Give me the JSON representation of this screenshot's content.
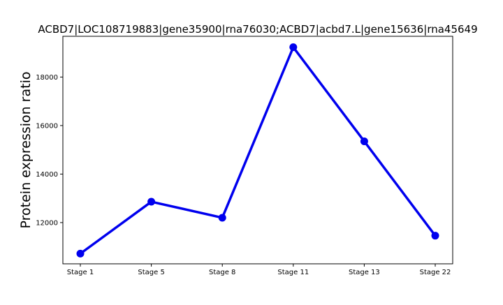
{
  "chart_data": {
    "type": "line",
    "title": "ACBD7|LOC108719883|gene35900|rna76030;ACBD7|acbd7.L|gene15636|rna45649",
    "xlabel": "",
    "ylabel": "Protein expression ratio",
    "categories": [
      "Stage 1",
      "Stage 5",
      "Stage 8",
      "Stage 11",
      "Stage 13",
      "Stage 22"
    ],
    "series": [
      {
        "values": [
          10720,
          12860,
          12200,
          19230,
          15350,
          11460
        ],
        "color": "#0000ee"
      }
    ],
    "yticks": [
      12000,
      14000,
      16000,
      18000
    ],
    "ylim": [
      10300,
      19680
    ],
    "grid": false,
    "legend": "none"
  }
}
